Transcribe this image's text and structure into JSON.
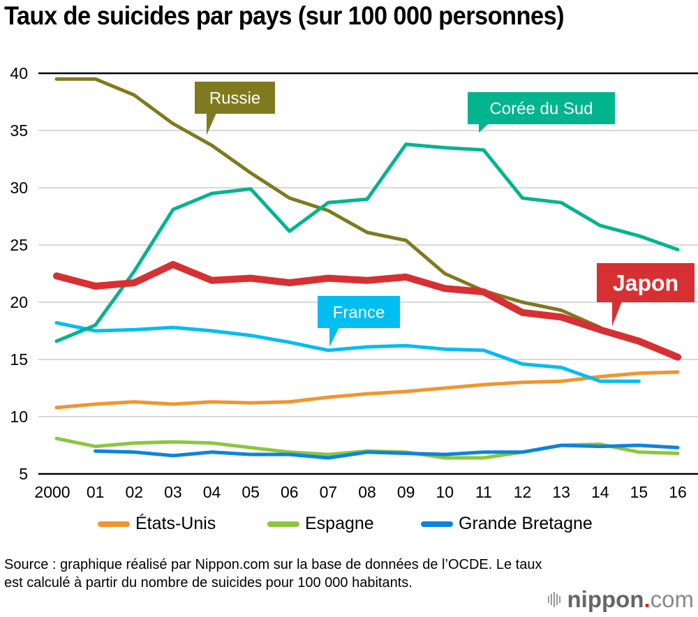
{
  "title": "Taux de suicides par pays (sur 100 000 personnes)",
  "chart_data": {
    "type": "line",
    "title": "Taux de suicides par pays (sur 100 000 personnes)",
    "xlabel": "",
    "ylabel": "",
    "x": [
      2000,
      2001,
      2002,
      2003,
      2004,
      2005,
      2006,
      2007,
      2008,
      2009,
      2010,
      2011,
      2012,
      2013,
      2014,
      2015,
      2016
    ],
    "x_tick_labels": [
      "2000",
      "01",
      "02",
      "03",
      "04",
      "05",
      "06",
      "07",
      "08",
      "09",
      "10",
      "11",
      "12",
      "13",
      "14",
      "15",
      "16"
    ],
    "ylim": [
      5,
      40
    ],
    "y_ticks": [
      5,
      10,
      15,
      20,
      25,
      30,
      35,
      40
    ],
    "grid": true,
    "series": [
      {
        "name": "Russie",
        "color": "#7f7a1f",
        "label_type": "callout",
        "values": [
          39.5,
          39.5,
          38.1,
          35.6,
          33.7,
          31.3,
          29.1,
          28.0,
          26.1,
          25.4,
          22.5,
          21.0,
          20.0,
          19.3,
          17.8,
          null,
          null
        ]
      },
      {
        "name": "Corée du Sud",
        "color": "#00b48e",
        "label_type": "callout",
        "values": [
          16.6,
          18.0,
          22.7,
          28.1,
          29.5,
          29.9,
          26.2,
          28.7,
          29.0,
          33.8,
          33.5,
          33.3,
          29.1,
          28.7,
          26.7,
          25.8,
          24.6
        ]
      },
      {
        "name": "Japon",
        "color": "#d63033",
        "label_type": "callout",
        "values": [
          22.3,
          21.4,
          21.7,
          23.3,
          21.9,
          22.1,
          21.7,
          22.1,
          21.9,
          22.2,
          21.2,
          20.9,
          19.1,
          18.7,
          17.6,
          16.6,
          15.2
        ]
      },
      {
        "name": "France",
        "color": "#00bdf2",
        "label_type": "callout",
        "values": [
          18.2,
          17.5,
          17.6,
          17.8,
          17.5,
          17.1,
          16.5,
          15.8,
          16.1,
          16.2,
          15.9,
          15.8,
          14.6,
          14.3,
          13.1,
          13.1,
          null
        ]
      },
      {
        "name": "États-Unis",
        "color": "#f0952e",
        "label_type": "legend",
        "values": [
          10.8,
          11.1,
          11.3,
          11.1,
          11.3,
          11.2,
          11.3,
          11.7,
          12.0,
          12.2,
          12.5,
          12.8,
          13.0,
          13.1,
          13.5,
          13.8,
          13.9
        ]
      },
      {
        "name": "Espagne",
        "color": "#8cc63f",
        "label_type": "legend",
        "values": [
          8.1,
          7.4,
          7.7,
          7.8,
          7.7,
          7.3,
          6.9,
          6.7,
          7.0,
          6.9,
          6.4,
          6.4,
          6.9,
          7.5,
          7.6,
          6.9,
          6.8
        ]
      },
      {
        "name": "Grande Bretagne",
        "color": "#0a84e0",
        "label_type": "legend",
        "values": [
          null,
          7.0,
          6.9,
          6.6,
          6.9,
          6.7,
          6.7,
          6.4,
          6.9,
          6.8,
          6.7,
          6.9,
          6.9,
          7.5,
          7.4,
          7.5,
          7.3
        ]
      }
    ],
    "callouts": [
      {
        "series": "Russie",
        "text": "Russie",
        "anchor_year": 2004,
        "anchor_value": 34.6
      },
      {
        "series": "Corée du Sud",
        "text": "Corée du Sud",
        "anchor_year": 2011,
        "anchor_value": 34.8
      },
      {
        "series": "France",
        "text": "France",
        "anchor_year": 2007,
        "anchor_value": 16.1
      },
      {
        "series": "Japon",
        "text": "Japon",
        "anchor_year": 2014,
        "anchor_value": 17.9
      }
    ],
    "legend": {
      "placement": "bottom",
      "entries": [
        "États-Unis",
        "Espagne",
        "Grande Bretagne"
      ]
    }
  },
  "legend": {
    "items": [
      {
        "label": "États-Unis",
        "color": "#f0952e"
      },
      {
        "label": "Espagne",
        "color": "#8cc63f"
      },
      {
        "label": "Grande Bretagne",
        "color": "#0a84e0"
      }
    ]
  },
  "source": {
    "text": "Source : graphique réalisé par Nippon.com sur la base de données de l’OCDE. Le taux est calculé à partir du nombre de suicides pour 100 000 habitants."
  },
  "logo": {
    "bold": "nippon",
    "dot": ".",
    "light": "com"
  }
}
